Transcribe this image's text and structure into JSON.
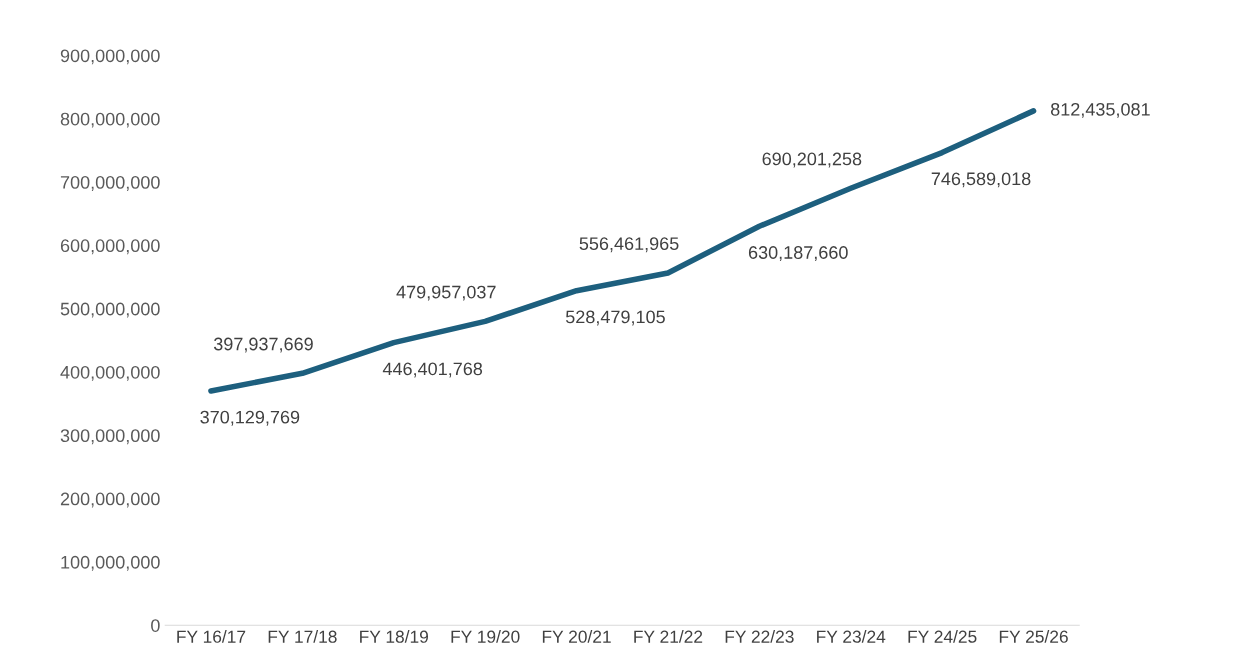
{
  "chart_data": {
    "type": "line",
    "categories": [
      "FY 16/17",
      "FY 17/18",
      "FY 18/19",
      "FY 19/20",
      "FY 20/21",
      "FY 21/22",
      "FY 22/23",
      "FY 23/24",
      "FY 24/25",
      "FY 25/26"
    ],
    "series": [
      {
        "color": "#1d5f7e",
        "values": [
          370129769,
          397937669,
          446401768,
          479957037,
          528479105,
          556461965,
          630187660,
          690201258,
          746589018,
          812435081
        ],
        "value_labels": [
          "370,129,769",
          "397,937,669",
          "446,401,768",
          "479,957,037",
          "528,479,105",
          "556,461,965",
          "630,187,660",
          "690,201,258",
          "746,589,018",
          "812,435,081"
        ]
      }
    ],
    "ylim": [
      0,
      900000000
    ],
    "yticks": [
      {
        "value": 0,
        "label": "0"
      },
      {
        "value": 100000000,
        "label": "100,000,000"
      },
      {
        "value": 200000000,
        "label": "200,000,000"
      },
      {
        "value": 300000000,
        "label": "300,000,000"
      },
      {
        "value": 400000000,
        "label": "400,000,000"
      },
      {
        "value": 500000000,
        "label": "500,000,000"
      },
      {
        "value": 600000000,
        "label": "600,000,000"
      },
      {
        "value": 700000000,
        "label": "700,000,000"
      },
      {
        "value": 800000000,
        "label": "800,000,000"
      },
      {
        "value": 900000000,
        "label": "900,000,000"
      }
    ],
    "grid": false,
    "legend": false,
    "marker": "none",
    "line_style": "solid"
  }
}
